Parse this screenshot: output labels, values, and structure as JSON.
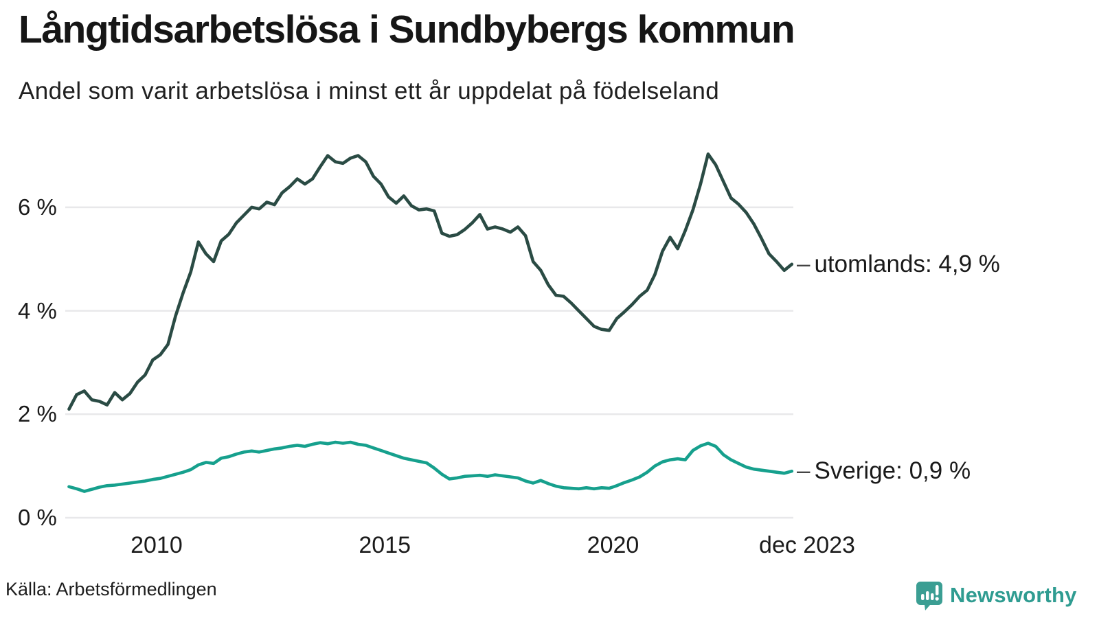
{
  "title": "Långtidsarbetslösa i Sundbybergs kommun",
  "subtitle": "Andel som varit arbetslösa i minst ett år uppdelat på födelseland",
  "source": "Källa: Arbetsförmedlingen",
  "logo": {
    "text": "Newsworthy"
  },
  "colors": {
    "utomlands_line": "#2a4b44",
    "sverige_line": "#16a08d",
    "gridline": "#e8e8ea",
    "logo_teal": "#3b9e93",
    "logo_text": "#2f9c91",
    "text": "#1b1b1b"
  },
  "chart_data": {
    "type": "line",
    "title": "Långtidsarbetslösa i Sundbybergs kommun",
    "subtitle": "Andel som varit arbetslösa i minst ett år uppdelat på födelseland",
    "unit": "%",
    "grid": true,
    "legend_position": "end-of-line-labels-right",
    "xlim": [
      2008.0,
      2023.95
    ],
    "ylim": [
      0,
      7.4
    ],
    "x_ticks": [
      {
        "label": "2010",
        "year": 2010
      },
      {
        "label": "2015",
        "year": 2015
      },
      {
        "label": "2020",
        "year": 2020
      },
      {
        "label": "dec 2023",
        "year": 2023.92
      }
    ],
    "y_ticks": [
      {
        "label": "0 %",
        "value": 0
      },
      {
        "label": "2 %",
        "value": 2
      },
      {
        "label": "4 %",
        "value": 4
      },
      {
        "label": "6 %",
        "value": 6
      }
    ],
    "x0": 2008.083,
    "dx": 0.16667,
    "series": [
      {
        "name": "utomlands",
        "label": "utomlands: 4,9 %",
        "dash": "–",
        "end_value": 4.9,
        "color": "#2a4b44",
        "values": [
          2.1,
          2.38,
          2.45,
          2.28,
          2.25,
          2.18,
          2.42,
          2.28,
          2.4,
          2.62,
          2.76,
          3.05,
          3.15,
          3.35,
          3.9,
          4.35,
          4.75,
          5.33,
          5.1,
          4.95,
          5.35,
          5.48,
          5.7,
          5.85,
          6.0,
          5.97,
          6.1,
          6.05,
          6.28,
          6.4,
          6.55,
          6.45,
          6.55,
          6.78,
          7.0,
          6.88,
          6.85,
          6.95,
          7.0,
          6.88,
          6.6,
          6.45,
          6.2,
          6.08,
          6.22,
          6.03,
          5.95,
          5.97,
          5.93,
          5.5,
          5.44,
          5.47,
          5.57,
          5.7,
          5.86,
          5.58,
          5.62,
          5.58,
          5.52,
          5.62,
          5.45,
          4.95,
          4.78,
          4.5,
          4.3,
          4.28,
          4.15,
          4.0,
          3.85,
          3.7,
          3.64,
          3.62,
          3.85,
          3.98,
          4.12,
          4.28,
          4.4,
          4.7,
          5.15,
          5.42,
          5.2,
          5.55,
          5.95,
          6.45,
          7.03,
          6.82,
          6.5,
          6.18,
          6.06,
          5.9,
          5.68,
          5.4,
          5.1,
          4.95,
          4.78,
          4.9
        ]
      },
      {
        "name": "Sverige",
        "label": "Sverige: 0,9 %",
        "dash": "–",
        "end_value": 0.9,
        "color": "#16a08d",
        "values": [
          0.6,
          0.56,
          0.51,
          0.55,
          0.59,
          0.62,
          0.63,
          0.65,
          0.67,
          0.69,
          0.71,
          0.74,
          0.76,
          0.8,
          0.84,
          0.88,
          0.93,
          1.02,
          1.07,
          1.05,
          1.15,
          1.18,
          1.23,
          1.27,
          1.29,
          1.27,
          1.3,
          1.33,
          1.35,
          1.38,
          1.4,
          1.38,
          1.42,
          1.45,
          1.43,
          1.46,
          1.44,
          1.46,
          1.42,
          1.4,
          1.35,
          1.3,
          1.25,
          1.2,
          1.15,
          1.12,
          1.09,
          1.06,
          0.96,
          0.84,
          0.75,
          0.77,
          0.8,
          0.81,
          0.82,
          0.8,
          0.83,
          0.81,
          0.79,
          0.77,
          0.71,
          0.67,
          0.72,
          0.66,
          0.61,
          0.58,
          0.57,
          0.56,
          0.58,
          0.56,
          0.58,
          0.57,
          0.62,
          0.68,
          0.73,
          0.79,
          0.88,
          1.0,
          1.08,
          1.12,
          1.14,
          1.12,
          1.3,
          1.39,
          1.44,
          1.38,
          1.22,
          1.12,
          1.05,
          0.98,
          0.94,
          0.92,
          0.9,
          0.88,
          0.86,
          0.9
        ]
      }
    ]
  }
}
